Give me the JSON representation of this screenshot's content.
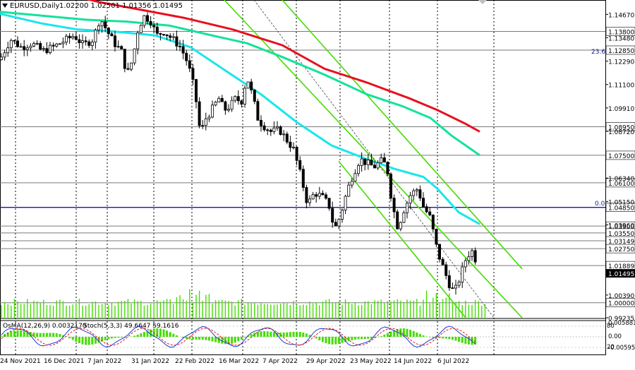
{
  "header": {
    "symbol": "EURUSD,Daily",
    "ohlc": "1.02200 1.02501 1.01356 1.01495"
  },
  "indicator_label": "OsMA(12,26,9) 0.0032170",
  "stoch_label": "Stoch(5,3,3) 49.6647 59.1616",
  "fib_labels": [
    "23.6",
    "0.0"
  ],
  "colors": {
    "candle": "#000000",
    "ma_red": "#e8101f",
    "ma_cyan": "#19e6ec",
    "ma_green": "#14e29a",
    "channel": "#44dd00",
    "hline": "#7a7a7a",
    "blue_line": "#1a1a9a",
    "volume": "#44dd00",
    "grid": "#000000",
    "current_box": "#000000"
  },
  "chart_data": {
    "type": "candlestick",
    "instrument": "EURUSD",
    "timeframe": "Daily",
    "x_tick_labels": [
      "24 Nov 2021",
      "16 Dec 2021",
      "7 Jan 2022",
      "31 Jan 2022",
      "22 Feb 2022",
      "16 Mar 2022",
      "7 Apr 2022",
      "29 Apr 2022",
      "23 May 2022",
      "14 Jun 2022",
      "6 Jul 2022"
    ],
    "y_tick_labels": [
      "1.14670",
      "1.13480",
      "1.12290",
      "1.11100",
      "1.09910",
      "1.08720",
      "1.06340",
      "1.05150",
      "1.03960",
      "1.00390",
      "0.99235"
    ],
    "levels": [
      {
        "label": "1.13800",
        "value": 1.138
      },
      {
        "label": "1.12850",
        "value": 1.1285
      },
      {
        "label": "1.08950",
        "value": 1.0895
      },
      {
        "label": "1.07500",
        "value": 1.075
      },
      {
        "label": "1.06100",
        "value": 1.061
      },
      {
        "label": "1.04850",
        "value": 1.0485
      },
      {
        "label": "1.03900",
        "value": 1.039
      },
      {
        "label": "1.03550",
        "value": 1.0355
      },
      {
        "label": "1.03149",
        "value": 1.03149
      },
      {
        "label": "1.02750",
        "value": 1.0275
      },
      {
        "label": "1.01889",
        "value": 1.01889
      },
      {
        "label": "1.00000",
        "value": 1.0
      }
    ],
    "current_price": {
      "label": "1.01495",
      "value": 1.01495
    },
    "y_range": [
      0.99235,
      1.154
    ],
    "osc_tick_labels": [
      "0.0058815",
      "0.00",
      "-0.00595"
    ],
    "stoch_tick_labels": [
      "80",
      "20"
    ],
    "moving_averages": [
      {
        "color": "red",
        "points": [
          [
            0,
            1.157
          ],
          [
            40,
            1.157
          ],
          [
            95,
            1.157
          ],
          [
            140,
            1.153
          ],
          [
            200,
            1.149
          ],
          [
            260,
            1.145
          ],
          [
            330,
            1.139
          ],
          [
            400,
            1.131
          ],
          [
            460,
            1.119
          ],
          [
            520,
            1.112
          ],
          [
            580,
            1.104
          ],
          [
            620,
            1.098
          ],
          [
            660,
            1.091
          ],
          [
            680,
            1.087
          ]
        ]
      },
      {
        "color": "cyan",
        "points": [
          [
            0,
            1.147
          ],
          [
            60,
            1.142
          ],
          [
            110,
            1.139
          ],
          [
            160,
            1.138
          ],
          [
            220,
            1.136
          ],
          [
            270,
            1.13
          ],
          [
            320,
            1.118
          ],
          [
            370,
            1.106
          ],
          [
            420,
            1.092
          ],
          [
            470,
            1.08
          ],
          [
            520,
            1.073
          ],
          [
            560,
            1.068
          ],
          [
            600,
            1.064
          ],
          [
            620,
            1.058
          ],
          [
            650,
            1.046
          ],
          [
            680,
            1.04
          ]
        ]
      },
      {
        "color": "green",
        "points": [
          [
            0,
            1.148
          ],
          [
            60,
            1.146
          ],
          [
            120,
            1.144
          ],
          [
            180,
            1.143
          ],
          [
            240,
            1.141
          ],
          [
            300,
            1.136
          ],
          [
            350,
            1.132
          ],
          [
            400,
            1.125
          ],
          [
            460,
            1.116
          ],
          [
            520,
            1.106
          ],
          [
            570,
            1.1
          ],
          [
            610,
            1.094
          ],
          [
            640,
            1.085
          ],
          [
            680,
            1.075
          ]
        ]
      }
    ],
    "channel_lines": [
      [
        [
          318,
          1.154
        ],
        [
          740,
          0.99235
        ]
      ],
      [
        [
          400,
          1.154
        ],
        [
          740,
          1.0172
        ]
      ],
      [
        [
          480,
          1.072
        ],
        [
          660,
          0.99235
        ]
      ],
      [
        [
          360,
          1.154
        ],
        [
          700,
          0.99235
        ]
      ]
    ],
    "close_path": [
      [
        2,
        1.125
      ],
      [
        15,
        1.134
      ],
      [
        30,
        1.13
      ],
      [
        45,
        1.132
      ],
      [
        60,
        1.128
      ],
      [
        75,
        1.13
      ],
      [
        90,
        1.133
      ],
      [
        105,
        1.136
      ],
      [
        118,
        1.131
      ],
      [
        132,
        1.134
      ],
      [
        142,
        1.145
      ],
      [
        152,
        1.138
      ],
      [
        162,
        1.132
      ],
      [
        172,
        1.128
      ],
      [
        180,
        1.116
      ],
      [
        188,
        1.124
      ],
      [
        196,
        1.14
      ],
      [
        205,
        1.146
      ],
      [
        214,
        1.143
      ],
      [
        222,
        1.136
      ],
      [
        232,
        1.138
      ],
      [
        245,
        1.134
      ],
      [
        256,
        1.13
      ],
      [
        266,
        1.122
      ],
      [
        276,
        1.108
      ],
      [
        284,
        1.086
      ],
      [
        292,
        1.094
      ],
      [
        300,
        1.098
      ],
      [
        310,
        1.104
      ],
      [
        318,
        1.098
      ],
      [
        326,
        1.1
      ],
      [
        334,
        1.104
      ],
      [
        342,
        1.102
      ],
      [
        350,
        1.115
      ],
      [
        358,
        1.105
      ],
      [
        366,
        1.093
      ],
      [
        374,
        1.09
      ],
      [
        384,
        1.087
      ],
      [
        396,
        1.088
      ],
      [
        406,
        1.083
      ],
      [
        416,
        1.078
      ],
      [
        426,
        1.065
      ],
      [
        436,
        1.05
      ],
      [
        446,
        1.056
      ],
      [
        456,
        1.054
      ],
      [
        466,
        1.05
      ],
      [
        474,
        1.037
      ],
      [
        482,
        1.044
      ],
      [
        492,
        1.057
      ],
      [
        500,
        1.065
      ],
      [
        510,
        1.073
      ],
      [
        520,
        1.071
      ],
      [
        530,
        1.069
      ],
      [
        540,
        1.072
      ],
      [
        548,
        1.07
      ],
      [
        556,
        1.05
      ],
      [
        564,
        1.038
      ],
      [
        572,
        1.047
      ],
      [
        582,
        1.055
      ],
      [
        592,
        1.058
      ],
      [
        600,
        1.049
      ],
      [
        610,
        1.043
      ],
      [
        620,
        1.026
      ],
      [
        628,
        1.018
      ],
      [
        636,
        1.01
      ],
      [
        644,
        1.005
      ],
      [
        652,
        1.013
      ],
      [
        660,
        1.022
      ],
      [
        668,
        1.027
      ],
      [
        674,
        1.022
      ],
      [
        678,
        1.015
      ]
    ]
  }
}
